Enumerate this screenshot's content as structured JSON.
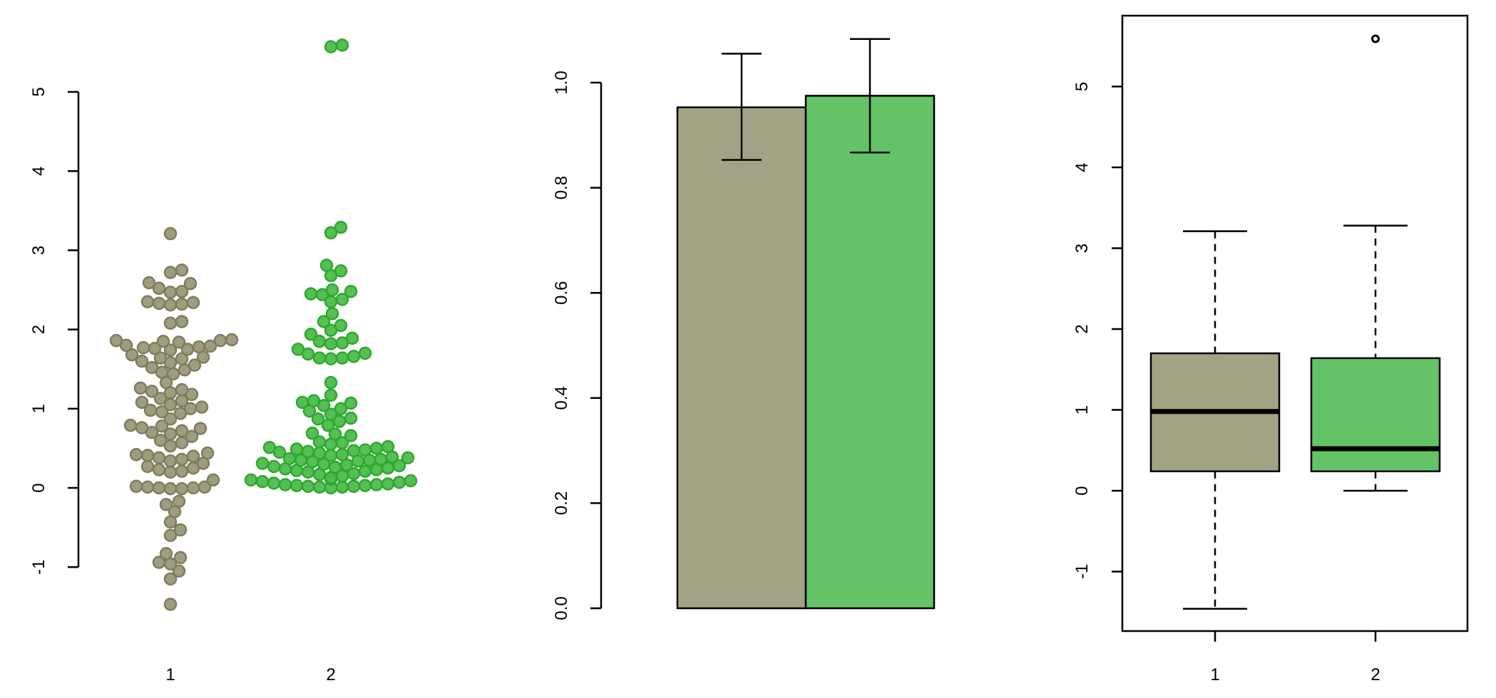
{
  "chart_data": [
    {
      "type": "scatter",
      "subtype": "beeswarm",
      "categories": [
        "1",
        "2"
      ],
      "yticks": [
        "-1",
        "0",
        "1",
        "2",
        "3",
        "4",
        "5"
      ],
      "ylim": [
        -1.6,
        5.8
      ],
      "colors": {
        "1": {
          "fill": "#9a9878",
          "stroke": "#7f7d5e"
        },
        "2": {
          "fill": "#4cba4c",
          "stroke": "#2fa82f"
        }
      },
      "series": [
        {
          "category": "1",
          "values": [
            3.21,
            2.75,
            2.72,
            2.59,
            2.58,
            2.52,
            2.48,
            2.47,
            2.35,
            2.34,
            2.33,
            2.32,
            2.31,
            2.1,
            2.08,
            1.87,
            1.86,
            1.86,
            1.85,
            1.84,
            1.8,
            1.79,
            1.78,
            1.77,
            1.76,
            1.75,
            1.74,
            1.68,
            1.65,
            1.64,
            1.63,
            1.6,
            1.58,
            1.55,
            1.52,
            1.49,
            1.46,
            1.44,
            1.33,
            1.26,
            1.24,
            1.22,
            1.2,
            1.18,
            1.13,
            1.1,
            1.08,
            1.05,
            1.02,
            1.0,
            0.98,
            0.96,
            0.94,
            0.87,
            0.79,
            0.78,
            0.76,
            0.75,
            0.72,
            0.7,
            0.68,
            0.65,
            0.6,
            0.57,
            0.53,
            0.44,
            0.42,
            0.41,
            0.4,
            0.38,
            0.36,
            0.34,
            0.31,
            0.27,
            0.25,
            0.23,
            0.21,
            0.2,
            0.1,
            0.02,
            0.01,
            0.01,
            0.0,
            0.0,
            -0.01,
            -0.01,
            -0.17,
            -0.21,
            -0.3,
            -0.43,
            -0.53,
            -0.6,
            -0.83,
            -0.88,
            -0.94,
            -0.96,
            -1.05,
            -1.15,
            -1.47
          ]
        },
        {
          "category": "2",
          "values": [
            5.59,
            5.57,
            3.29,
            3.22,
            2.81,
            2.74,
            2.68,
            2.5,
            2.48,
            2.45,
            2.44,
            2.38,
            2.35,
            2.2,
            2.1,
            2.05,
            1.99,
            1.94,
            1.89,
            1.85,
            1.83,
            1.82,
            1.75,
            1.7,
            1.69,
            1.66,
            1.64,
            1.64,
            1.63,
            1.33,
            1.17,
            1.1,
            1.08,
            1.07,
            1.04,
            1.0,
            0.97,
            0.93,
            0.88,
            0.87,
            0.84,
            0.79,
            0.69,
            0.68,
            0.66,
            0.58,
            0.57,
            0.55,
            0.52,
            0.51,
            0.5,
            0.49,
            0.48,
            0.47,
            0.46,
            0.45,
            0.44,
            0.42,
            0.41,
            0.39,
            0.38,
            0.37,
            0.36,
            0.35,
            0.35,
            0.34,
            0.33,
            0.31,
            0.3,
            0.29,
            0.28,
            0.27,
            0.26,
            0.25,
            0.24,
            0.23,
            0.22,
            0.21,
            0.2,
            0.18,
            0.17,
            0.15,
            0.13,
            0.11,
            0.1,
            0.09,
            0.08,
            0.07,
            0.06,
            0.05,
            0.04,
            0.04,
            0.03,
            0.03,
            0.02,
            0.02,
            0.01,
            0.01,
            0.0
          ]
        }
      ]
    },
    {
      "type": "bar",
      "categories": [
        "1",
        "2"
      ],
      "values": [
        0.953,
        0.975
      ],
      "error_low": [
        0.853,
        0.867
      ],
      "error_high": [
        1.055,
        1.083
      ],
      "colors": [
        "#a2a385",
        "#64c366"
      ],
      "yticks": [
        "0.0",
        "0.2",
        "0.4",
        "0.6",
        "0.8",
        "1.0"
      ],
      "ylim": [
        0,
        1.1
      ]
    },
    {
      "type": "box",
      "categories": [
        "1",
        "2"
      ],
      "boxes": [
        {
          "category": "1",
          "whisker_low": -1.46,
          "q1": 0.24,
          "median": 0.98,
          "q3": 1.7,
          "whisker_high": 3.21,
          "outliers": []
        },
        {
          "category": "2",
          "whisker_low": 0.0,
          "q1": 0.24,
          "median": 0.52,
          "q3": 1.64,
          "whisker_high": 3.28,
          "outliers": [
            5.59
          ]
        }
      ],
      "colors": [
        "#a2a385",
        "#64c366"
      ],
      "yticks": [
        "-1",
        "0",
        "1",
        "2",
        "3",
        "4",
        "5"
      ],
      "ylim": [
        -1.75,
        5.9
      ]
    }
  ]
}
